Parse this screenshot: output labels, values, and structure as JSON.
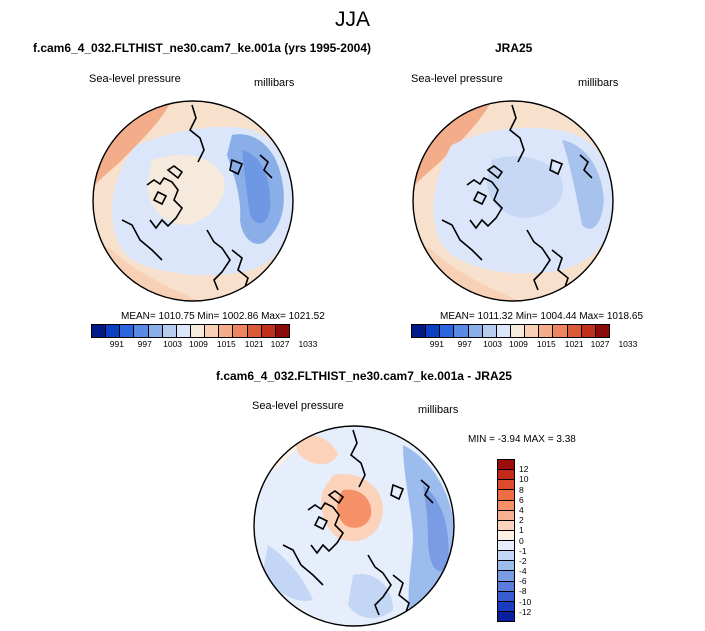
{
  "figure": {
    "season": "JJA"
  },
  "panels": {
    "model": {
      "title": "f.cam6_4_032.FLTHIST_ne30.cam7_ke.001a (yrs 1995-2004)",
      "variable": "Sea-level pressure",
      "units": "millibars",
      "stats": "MEAN= 1010.75  Min= 1002.86  Max= 1021.52"
    },
    "obs": {
      "title": "JRA25",
      "variable": "Sea-level pressure",
      "units": "millibars",
      "stats": "MEAN= 1011.32  Min= 1004.44  Max= 1018.65"
    },
    "diff": {
      "title": "f.cam6_4_032.FLTHIST_ne30.cam7_ke.001a - JRA25",
      "variable": "Sea-level pressure",
      "units": "millibars",
      "stats": "MIN =  -3.94 MAX =   3.38"
    }
  },
  "colorbars": {
    "field": {
      "labels": [
        "991",
        "997",
        "1003",
        "1009",
        "1015",
        "1021",
        "1027",
        "1033"
      ],
      "colors": [
        "#001a8a",
        "#0a3fc4",
        "#2a66e0",
        "#5a8ae6",
        "#8aaee8",
        "#b8ccf0",
        "#dbe6fa",
        "#f5eadc",
        "#f7d0b6",
        "#f4ad8a",
        "#ec8560",
        "#db5a3a",
        "#c02e1c",
        "#8c0a0a"
      ]
    },
    "diff": {
      "labels": [
        "12",
        "10",
        "8",
        "6",
        "4",
        "2",
        "1",
        "0",
        "-1",
        "-2",
        "-4",
        "-6",
        "-8",
        "-10",
        "-12"
      ],
      "colors": [
        "#9e0d0d",
        "#c42a1a",
        "#de4a2c",
        "#ee6e44",
        "#f59068",
        "#f8b090",
        "#fbd2ba",
        "#fdf0e4",
        "#e6eefc",
        "#c4d6f6",
        "#9cbcee",
        "#7a9ce4",
        "#5a7cdc",
        "#3a5cd2",
        "#1a3cc2",
        "#0a1e9e"
      ]
    }
  },
  "chart_data": [
    {
      "type": "heatmap",
      "title": "f.cam6_4_032.FLTHIST_ne30.cam7_ke.001a (yrs 1995-2004)",
      "variable": "Sea-level pressure",
      "units": "millibars",
      "projection": "north polar stereographic",
      "mean": 1010.75,
      "min": 1002.86,
      "max": 1021.52,
      "colorbar_levels": [
        991,
        997,
        1003,
        1009,
        1015,
        1021,
        1027,
        1033
      ]
    },
    {
      "type": "heatmap",
      "title": "JRA25",
      "variable": "Sea-level pressure",
      "units": "millibars",
      "projection": "north polar stereographic",
      "mean": 1011.32,
      "min": 1004.44,
      "max": 1018.65,
      "colorbar_levels": [
        991,
        997,
        1003,
        1009,
        1015,
        1021,
        1027,
        1033
      ]
    },
    {
      "type": "heatmap",
      "title": "f.cam6_4_032.FLTHIST_ne30.cam7_ke.001a - JRA25",
      "variable": "Sea-level pressure",
      "units": "millibars",
      "projection": "north polar stereographic",
      "min": -3.94,
      "max": 3.38,
      "colorbar_levels": [
        12,
        10,
        8,
        6,
        4,
        2,
        1,
        0,
        -1,
        -2,
        -4,
        -6,
        -8,
        -10,
        -12
      ]
    }
  ]
}
